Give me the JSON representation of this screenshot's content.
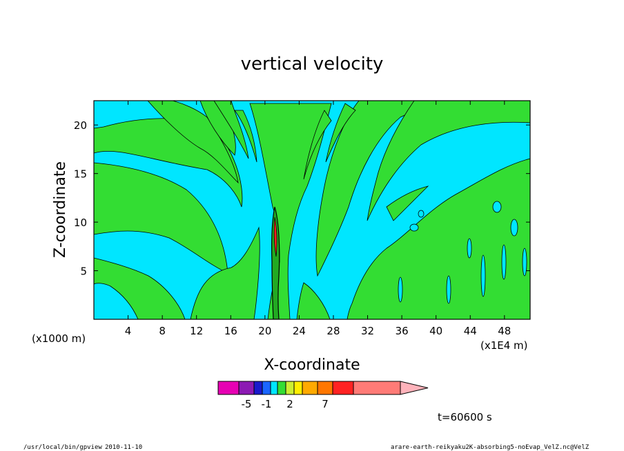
{
  "chart_data": {
    "type": "heatmap",
    "title": "vertical velocity",
    "xlabel": "X-coordinate",
    "ylabel": "Z-coordinate",
    "x_scale_note_left": "(x1000 m)",
    "x_scale_note_right": "(x1E4 m)",
    "xlim": [
      0,
      51
    ],
    "ylim": [
      0,
      22.5
    ],
    "x_ticks": [
      4,
      8,
      12,
      16,
      20,
      24,
      28,
      32,
      36,
      40,
      44,
      48
    ],
    "y_ticks": [
      5,
      10,
      15,
      20
    ],
    "colorbar": {
      "colors": [
        "#e600b3",
        "#8c1ab3",
        "#1a1acc",
        "#1a66ff",
        "#00e6ff",
        "#33dd33",
        "#ccee33",
        "#ffee00",
        "#ffaa00",
        "#ff7700",
        "#ff2222",
        "#ff7b77",
        "#ffb3bb"
      ],
      "tick_labels": [
        "-5",
        "-1",
        "2",
        "7"
      ],
      "tick_index": [
        1,
        3,
        6,
        9
      ]
    },
    "time_label": "t=60600 s"
  },
  "footer": {
    "program": "/usr/local/bin/gpview",
    "date": "2010-11-10",
    "source": "arare-earth-reikyaku2K-absorbing5-noEvap_VelZ.nc@VelZ"
  }
}
